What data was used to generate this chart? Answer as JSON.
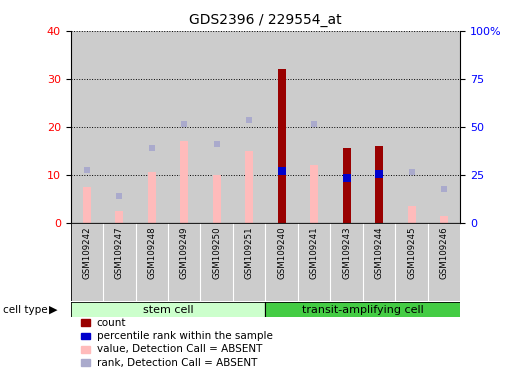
{
  "title": "GDS2396 / 229554_at",
  "samples": [
    "GSM109242",
    "GSM109247",
    "GSM109248",
    "GSM109249",
    "GSM109250",
    "GSM109251",
    "GSM109240",
    "GSM109241",
    "GSM109243",
    "GSM109244",
    "GSM109245",
    "GSM109246"
  ],
  "cell_types": [
    "stem cell",
    "stem cell",
    "stem cell",
    "stem cell",
    "stem cell",
    "stem cell",
    "transit-amplifying cell",
    "transit-amplifying cell",
    "transit-amplifying cell",
    "transit-amplifying cell",
    "transit-amplifying cell",
    "transit-amplifying cell"
  ],
  "count_values": [
    null,
    null,
    null,
    null,
    null,
    null,
    32,
    null,
    15.5,
    16,
    null,
    null
  ],
  "percentile_values": [
    null,
    null,
    null,
    null,
    null,
    null,
    27,
    null,
    23.5,
    25.5,
    null,
    null
  ],
  "absent_value_bars": [
    7.5,
    2.5,
    10.5,
    17,
    10,
    15,
    null,
    12,
    null,
    null,
    3.5,
    1.5
  ],
  "absent_rank_dots": [
    11,
    5.5,
    15.5,
    20.5,
    16.5,
    21.5,
    null,
    20.5,
    null,
    null,
    10.5,
    7
  ],
  "ylim_left": [
    0,
    40
  ],
  "ylim_right": [
    0,
    100
  ],
  "yticks_left": [
    0,
    10,
    20,
    30,
    40
  ],
  "yticks_right": [
    0,
    25,
    50,
    75,
    100
  ],
  "yticklabels_right": [
    "0",
    "25",
    "50",
    "75",
    "100%"
  ],
  "color_count": "#990000",
  "color_percentile": "#0000cc",
  "color_absent_value": "#ffbbbb",
  "color_absent_rank": "#aaaacc",
  "color_stem_light": "#ccffcc",
  "color_stem_dark": "#44cc44",
  "color_transit_light": "#44cc44",
  "color_transit_dark": "#44cc44",
  "color_bg_sample": "#cccccc",
  "bar_width": 0.45,
  "legend_items": [
    {
      "label": "count",
      "color": "#990000"
    },
    {
      "label": "percentile rank within the sample",
      "color": "#0000cc"
    },
    {
      "label": "value, Detection Call = ABSENT",
      "color": "#ffbbbb"
    },
    {
      "label": "rank, Detection Call = ABSENT",
      "color": "#aaaacc"
    }
  ]
}
